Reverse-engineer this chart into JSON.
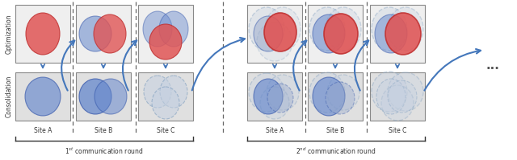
{
  "fig_width": 6.4,
  "fig_height": 1.99,
  "dpi": 100,
  "bg_color": "#ffffff",
  "box_bg": "#efefef",
  "box_bg_dark": "#e0e0e0",
  "box_edge": "#888888",
  "red_fill": "#e05555",
  "red_edge": "#c03030",
  "blue_fill": "#6688cc",
  "blue_edge": "#3355aa",
  "blue_light": "#99aacc",
  "blue_xlight": "#c5d0e0",
  "dashed_color": "#7799bb",
  "arrow_color": "#4477bb",
  "label_color": "#333333",
  "round1_label": "1$^{st}$ communication round",
  "round2_label": "2$^{nd}$ communication round",
  "opt_label": "Optimization",
  "con_label": "Consolidation",
  "sites": [
    "Site A",
    "Site B",
    "Site C"
  ],
  "dots_label": "..."
}
